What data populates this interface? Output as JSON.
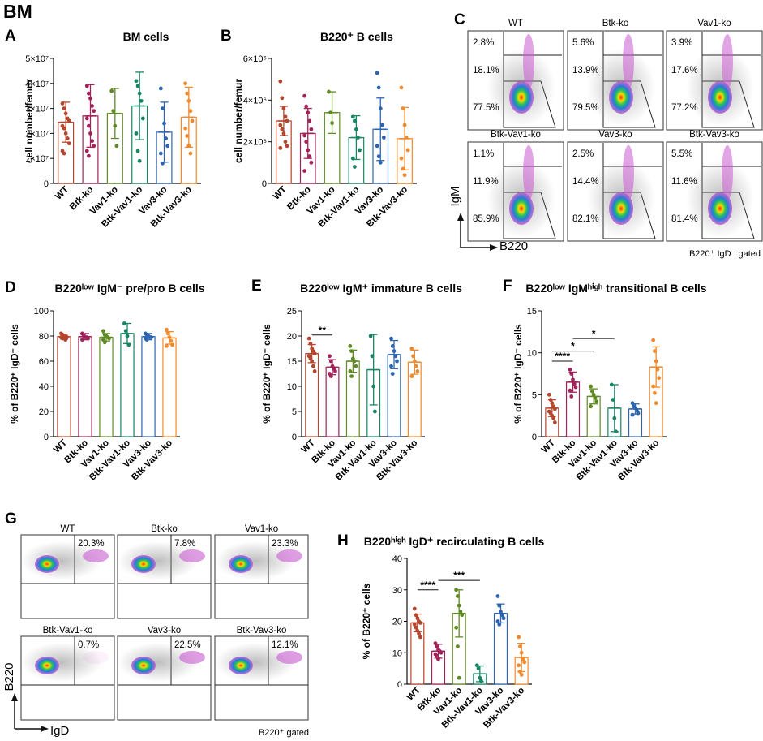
{
  "figure": {
    "title": "BM",
    "panel_letters": [
      "A",
      "B",
      "C",
      "D",
      "E",
      "F",
      "G",
      "H"
    ]
  },
  "colors": {
    "WT": "#b5452c",
    "Btk-ko": "#a3225b",
    "Vav1-ko": "#5f8a22",
    "Btk-Vav1-ko": "#178563",
    "Vav3-ko": "#2d64b0",
    "Btk-Vav3-ko": "#f08a2e"
  },
  "genotypes": [
    "WT",
    "Btk-ko",
    "Vav1-ko",
    "Btk-Vav1-ko",
    "Vav3-ko",
    "Btk-Vav3-ko"
  ],
  "chart_data": [
    {
      "id": "A",
      "type": "bar",
      "title": "BM cells",
      "ylabel": "cell number/femur",
      "categories": [
        "WT",
        "Btk-ko",
        "Vav1-ko",
        "Btk-Vav1-ko",
        "Vav3-ko",
        "Btk-Vav3-ko"
      ],
      "values": [
        2.45,
        2.7,
        2.8,
        3.1,
        2.05,
        2.65
      ],
      "errors": [
        0.8,
        1.25,
        1.0,
        1.35,
        1.2,
        1.2
      ],
      "points": [
        [
          3.2,
          3.0,
          2.8,
          2.6,
          2.5,
          2.3,
          2.2,
          2.0,
          1.8,
          1.6,
          1.3,
          1.2
        ],
        [
          3.9,
          3.6,
          3.4,
          3.1,
          2.9,
          2.6,
          2.3,
          2.0,
          1.7,
          1.5,
          1.3,
          1.1
        ],
        [
          3.7,
          2.9,
          2.3,
          1.5
        ],
        [
          4.1,
          3.9,
          3.6,
          3.3,
          2.6,
          2.0,
          1.3,
          0.9
        ],
        [
          3.8,
          3.0,
          2.4,
          1.8,
          1.5,
          1.2,
          0.8
        ],
        [
          4.0,
          3.6,
          3.3,
          2.9,
          2.5,
          2.2,
          1.9,
          1.5,
          1.2
        ]
      ],
      "ylim": [
        0,
        5
      ],
      "yticks": [
        "0",
        "1×10⁷",
        "2×10⁷",
        "3×10⁷",
        "4×10⁷",
        "5×10⁷"
      ],
      "sig": []
    },
    {
      "id": "B",
      "type": "bar",
      "title": "B220⁺ B cells",
      "ylabel": "cell number/femur",
      "categories": [
        "WT",
        "Btk-ko",
        "Vav1-ko",
        "Btk-Vav1-ko",
        "Vav3-ko",
        "Btk-Vav3-ko"
      ],
      "values": [
        3.0,
        2.4,
        3.4,
        2.2,
        2.6,
        2.15
      ],
      "errors": [
        0.7,
        1.2,
        1.0,
        1.05,
        1.5,
        1.5
      ],
      "points": [
        [
          4.9,
          4.1,
          3.6,
          3.2,
          3.0,
          2.8,
          2.6,
          2.4,
          2.0,
          1.8,
          1.7
        ],
        [
          4.2,
          3.7,
          3.4,
          3.0,
          2.6,
          2.3,
          2.0,
          1.6,
          1.3,
          1.0,
          0.6
        ],
        [
          4.4,
          3.4,
          2.9
        ],
        [
          3.2,
          3.0,
          2.6,
          2.2,
          1.6,
          1.2,
          0.8
        ],
        [
          5.3,
          4.6,
          3.6,
          2.8,
          2.2,
          1.8,
          1.3,
          1.0
        ],
        [
          4.6,
          3.6,
          2.8,
          2.2,
          1.6,
          1.2,
          0.7,
          0.4
        ]
      ],
      "ylim": [
        0,
        6
      ],
      "yticks": [
        "0",
        "2×10⁶",
        "4×10⁶",
        "6×10⁶"
      ],
      "sig": []
    },
    {
      "id": "D",
      "type": "bar",
      "title": "B220ˡᵒʷ IgM⁻ pre/pro  B cells",
      "ylabel": "% of B220⁺ IgD⁻ cells",
      "categories": [
        "WT",
        "Btk-ko",
        "Vav1-ko",
        "Btk-Vav1-ko",
        "Vav3-ko",
        "Btk-Vav3-ko"
      ],
      "values": [
        79.5,
        79.5,
        79.0,
        82.0,
        79.5,
        78.5
      ],
      "errors": [
        2.0,
        2.5,
        3.0,
        8.0,
        2.5,
        5.0
      ],
      "points": [
        [
          82,
          81,
          80,
          80,
          79,
          79,
          78,
          78,
          77
        ],
        [
          82,
          80,
          79,
          79,
          78,
          77
        ],
        [
          84,
          81,
          80,
          79,
          78,
          77,
          75
        ],
        [
          90,
          84,
          80,
          73
        ],
        [
          82,
          81,
          80,
          79,
          79,
          78,
          77
        ],
        [
          85,
          82,
          79,
          76,
          73,
          72
        ]
      ],
      "ylim": [
        0,
        100
      ],
      "yticks": [
        "0",
        "20",
        "40",
        "60",
        "80",
        "100"
      ],
      "sig": []
    },
    {
      "id": "E",
      "type": "bar",
      "title": "B220ˡᵒʷ IgM⁺ immature  B cells",
      "ylabel": "% of B220⁺ IgD⁻ cells",
      "categories": [
        "WT",
        "Btk-ko",
        "Vav1-ko",
        "Btk-Vav1-ko",
        "Vav3-ko",
        "Btk-Vav3-ko"
      ],
      "values": [
        16.5,
        13.8,
        15.0,
        13.3,
        16.3,
        14.8
      ],
      "errors": [
        1.8,
        1.5,
        2.2,
        7.0,
        2.8,
        2.4
      ],
      "points": [
        [
          19.5,
          18.5,
          17.5,
          17,
          16.5,
          16,
          15.5,
          15,
          14,
          13
        ],
        [
          16,
          15,
          14,
          13.5,
          13,
          12.5,
          12
        ],
        [
          18,
          17,
          15.5,
          15,
          14,
          13,
          12
        ],
        [
          20,
          16,
          10,
          5
        ],
        [
          19.5,
          18,
          17,
          16,
          15,
          14,
          12.5
        ],
        [
          17.5,
          16,
          15,
          14,
          13,
          12
        ]
      ],
      "ylim": [
        0,
        25
      ],
      "yticks": [
        "0",
        "5",
        "10",
        "15",
        "20",
        "25"
      ],
      "sig": [
        {
          "a": 0,
          "b": 1,
          "y": 20.2,
          "label": "**"
        }
      ]
    },
    {
      "id": "F",
      "type": "bar",
      "title": "B220ˡᵒʷ IgMʰⁱᵍʰ transitional  B cells",
      "ylabel": "% of B220⁺ IgD⁻ cells",
      "categories": [
        "WT",
        "Btk-ko",
        "Vav1-ko",
        "Btk-Vav1-ko",
        "Vav3-ko",
        "Btk-Vav3-ko"
      ],
      "values": [
        3.4,
        6.5,
        4.8,
        3.4,
        3.3,
        8.3
      ],
      "errors": [
        1.0,
        1.2,
        0.9,
        2.8,
        0.6,
        2.4
      ],
      "points": [
        [
          5,
          4.4,
          4,
          3.6,
          3.3,
          3,
          2.8,
          2.5,
          2.2,
          1.7
        ],
        [
          8,
          7.5,
          6.8,
          6.3,
          5.9,
          5.5,
          4.8
        ],
        [
          6,
          5.4,
          5,
          4.6,
          4.2,
          3.6
        ],
        [
          6.2,
          4.4,
          2.2,
          0.6
        ],
        [
          4,
          3.6,
          3.4,
          3.1,
          2.8,
          2.6
        ],
        [
          11.5,
          10.2,
          9,
          8,
          7,
          6,
          5.2,
          4
        ]
      ],
      "ylim": [
        0,
        15
      ],
      "yticks": [
        "0",
        "5",
        "10",
        "15"
      ],
      "sig": [
        {
          "a": 0,
          "b": 1,
          "y": 9.0,
          "label": "****"
        },
        {
          "a": 0,
          "b": 2,
          "y": 10.2,
          "label": "*"
        },
        {
          "a": 1,
          "b": 3,
          "y": 11.7,
          "label": "*"
        }
      ]
    },
    {
      "id": "H",
      "type": "bar",
      "title": "B220ʰⁱᵍʰ IgD⁺ recirculating  B cells",
      "ylabel": "% of B220⁺ cells",
      "categories": [
        "WT",
        "Btk-ko",
        "Vav1-ko",
        "Btk-Vav1-ko",
        "Vav3-ko",
        "Btk-Vav3-ko"
      ],
      "values": [
        19.5,
        10.5,
        22.5,
        3.3,
        22.5,
        8.5
      ],
      "errors": [
        2.8,
        2.2,
        7.5,
        2.5,
        3.0,
        4.5
      ],
      "points": [
        [
          24,
          22,
          21,
          20,
          19.5,
          19,
          18,
          17,
          16,
          15
        ],
        [
          13,
          12,
          11,
          10.5,
          10,
          9.5,
          9,
          8
        ],
        [
          30,
          28,
          25,
          23,
          22,
          18,
          12,
          2
        ],
        [
          6,
          5,
          2,
          1
        ],
        [
          28,
          25,
          23,
          22,
          21,
          20,
          19
        ],
        [
          15,
          12,
          10,
          8,
          7,
          6,
          4,
          3
        ]
      ],
      "ylim": [
        0,
        40
      ],
      "yticks": [
        "0",
        "10",
        "20",
        "30",
        "40"
      ],
      "sig": [
        {
          "a": 0,
          "b": 1,
          "y": 30,
          "label": "****"
        },
        {
          "a": 1,
          "b": 3,
          "y": 33,
          "label": "***"
        }
      ]
    }
  ],
  "flow_C": {
    "plots": [
      {
        "name": "WT",
        "top": "2.8%",
        "mid": "18.1%",
        "bot": "77.5%"
      },
      {
        "name": "Btk-ko",
        "top": "5.6%",
        "mid": "13.9%",
        "bot": "79.5%"
      },
      {
        "name": "Vav1-ko",
        "top": "3.9%",
        "mid": "17.6%",
        "bot": "77.2%"
      },
      {
        "name": "Btk-Vav1-ko",
        "top": "1.1%",
        "mid": "11.9%",
        "bot": "85.9%"
      },
      {
        "name": "Vav3-ko",
        "top": "2.5%",
        "mid": "14.4%",
        "bot": "82.1%"
      },
      {
        "name": "Btk-Vav3-ko",
        "top": "5.5%",
        "mid": "11.6%",
        "bot": "81.4%"
      }
    ],
    "yaxis": "IgM",
    "xaxis": "B220",
    "gate_note": "B220⁺ IgD⁻ gated"
  },
  "flow_G": {
    "plots": [
      {
        "name": "WT",
        "pct": "20.3%"
      },
      {
        "name": "Btk-ko",
        "pct": "7.8%"
      },
      {
        "name": "Vav1-ko",
        "pct": "23.3%"
      },
      {
        "name": "Btk-Vav1-ko",
        "pct": "0.7%"
      },
      {
        "name": "Vav3-ko",
        "pct": "22.5%"
      },
      {
        "name": "Btk-Vav3-ko",
        "pct": "12.1%"
      }
    ],
    "yaxis": "B220",
    "xaxis": "IgD",
    "gate_note": "B220⁺ gated"
  }
}
